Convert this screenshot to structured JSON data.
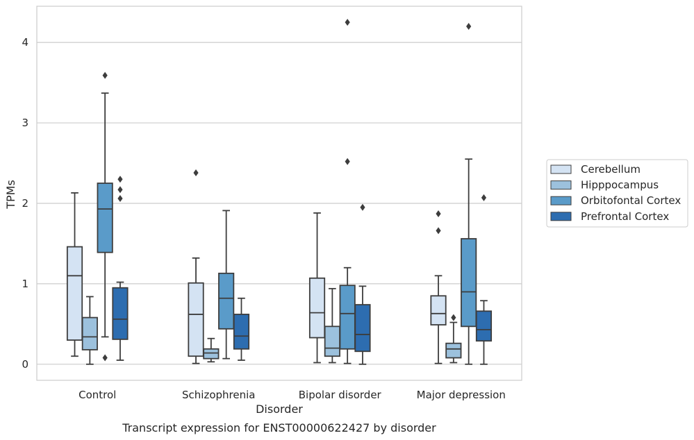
{
  "caption": "Transcript expression for ENST00000622427 by disorder",
  "chart_data": {
    "type": "box",
    "xlabel": "Disorder",
    "ylabel": "TPMs",
    "ylim": [
      -0.2,
      4.45
    ],
    "yticks": [
      0,
      1,
      2,
      3,
      4
    ],
    "grid": "horizontal",
    "legend_position": "right",
    "categories": [
      "Control",
      "Schizophrenia",
      "Bipolar disorder",
      "Major depression"
    ],
    "series": [
      {
        "name": "Cerebellum",
        "color": "#d4e3f3",
        "boxes": [
          {
            "whisker_low": 0.1,
            "q1": 0.3,
            "median": 1.1,
            "q3": 1.46,
            "whisker_high": 2.13,
            "outliers": []
          },
          {
            "whisker_low": 0.01,
            "q1": 0.1,
            "median": 0.62,
            "q3": 1.01,
            "whisker_high": 1.32,
            "outliers": [
              2.38
            ]
          },
          {
            "whisker_low": 0.02,
            "q1": 0.33,
            "median": 0.64,
            "q3": 1.07,
            "whisker_high": 1.88,
            "outliers": []
          },
          {
            "whisker_low": 0.01,
            "q1": 0.49,
            "median": 0.63,
            "q3": 0.85,
            "whisker_high": 1.1,
            "outliers": [
              1.66,
              1.87
            ]
          }
        ]
      },
      {
        "name": "Hipppocampus",
        "color": "#9cc1dd",
        "boxes": [
          {
            "whisker_low": 0.0,
            "q1": 0.18,
            "median": 0.34,
            "q3": 0.58,
            "whisker_high": 0.84,
            "outliers": []
          },
          {
            "whisker_low": 0.03,
            "q1": 0.07,
            "median": 0.14,
            "q3": 0.19,
            "whisker_high": 0.32,
            "outliers": []
          },
          {
            "whisker_low": 0.02,
            "q1": 0.1,
            "median": 0.2,
            "q3": 0.47,
            "whisker_high": 0.94,
            "outliers": []
          },
          {
            "whisker_low": 0.02,
            "q1": 0.08,
            "median": 0.19,
            "q3": 0.26,
            "whisker_high": 0.52,
            "outliers": [
              0.58
            ]
          }
        ]
      },
      {
        "name": "Orbitofontal Cortex",
        "color": "#5a9bc9",
        "boxes": [
          {
            "whisker_low": 0.34,
            "q1": 1.39,
            "median": 1.93,
            "q3": 2.25,
            "whisker_high": 3.37,
            "outliers": [
              0.08,
              3.59
            ]
          },
          {
            "whisker_low": 0.07,
            "q1": 0.44,
            "median": 0.82,
            "q3": 1.13,
            "whisker_high": 1.91,
            "outliers": []
          },
          {
            "whisker_low": 0.01,
            "q1": 0.19,
            "median": 0.63,
            "q3": 0.98,
            "whisker_high": 1.2,
            "outliers": [
              2.52,
              4.25
            ]
          },
          {
            "whisker_low": 0.0,
            "q1": 0.47,
            "median": 0.9,
            "q3": 1.56,
            "whisker_high": 2.55,
            "outliers": [
              4.2
            ]
          }
        ]
      },
      {
        "name": "Prefrontal Cortex",
        "color": "#2d6db0",
        "boxes": [
          {
            "whisker_low": 0.05,
            "q1": 0.31,
            "median": 0.56,
            "q3": 0.95,
            "whisker_high": 1.02,
            "outliers": [
              2.06,
              2.17,
              2.3
            ]
          },
          {
            "whisker_low": 0.05,
            "q1": 0.19,
            "median": 0.35,
            "q3": 0.62,
            "whisker_high": 0.82,
            "outliers": []
          },
          {
            "whisker_low": 0.0,
            "q1": 0.16,
            "median": 0.37,
            "q3": 0.74,
            "whisker_high": 0.97,
            "outliers": [
              1.95
            ]
          },
          {
            "whisker_low": 0.0,
            "q1": 0.29,
            "median": 0.43,
            "q3": 0.66,
            "whisker_high": 0.79,
            "outliers": [
              2.07
            ]
          }
        ]
      }
    ]
  }
}
